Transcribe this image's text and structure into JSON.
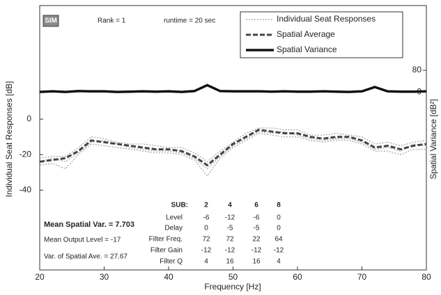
{
  "chart_data": {
    "type": "line",
    "x_label": "Frequency [Hz]",
    "y_label": "Individual Seat Responses  [dB]",
    "y2_label": "Spatial Variance  [dB²]",
    "logo": "SIM",
    "annotations": [
      "Rank = 1",
      "runtime = 20 sec"
    ],
    "stats": [
      "Mean Spatial Var. = 7.703",
      "Mean Output Level = -17",
      "Var. of Spatial Ave. = 27.67"
    ],
    "table": {
      "header": [
        "SUB:",
        2,
        4,
        6,
        8
      ],
      "rows": [
        [
          "Level",
          -6,
          -12,
          -6,
          0
        ],
        [
          "Delay",
          0,
          -5,
          -5,
          0
        ],
        [
          "Filter Freq.",
          72,
          72,
          22,
          64
        ],
        [
          "Filter Gain",
          -12,
          -12,
          -12,
          -12
        ],
        [
          "Filter  Q",
          4,
          16,
          16,
          4
        ]
      ]
    },
    "x": [
      20,
      22,
      24,
      26,
      28,
      30,
      32,
      34,
      36,
      38,
      40,
      42,
      44,
      46,
      48,
      50,
      52,
      54,
      56,
      58,
      60,
      62,
      64,
      66,
      68,
      70,
      72,
      74,
      76,
      78,
      80
    ],
    "series": [
      {
        "name": "Individual Seat Responses",
        "color": "#a0a0a0",
        "style": "dotted",
        "seats": [
          [
            -22,
            -21,
            -21,
            -16,
            -10,
            -11,
            -13,
            -14,
            -14,
            -15,
            -16,
            -16,
            -19,
            -24,
            -18,
            -13,
            -8,
            -5,
            -5,
            -6,
            -6,
            -9,
            -9,
            -8,
            -9,
            -10,
            -14,
            -13,
            -15,
            -13,
            -12
          ],
          [
            -26,
            -25,
            -28,
            -20,
            -14,
            -15,
            -16,
            -17,
            -18,
            -19,
            -19,
            -20,
            -23,
            -32,
            -22,
            -16,
            -12,
            -8,
            -9,
            -10,
            -10,
            -12,
            -13,
            -12,
            -12,
            -14,
            -18,
            -18,
            -20,
            -17,
            -17
          ],
          [
            -24,
            -22,
            -24,
            -19,
            -13,
            -12,
            -14,
            -16,
            -17,
            -18,
            -18,
            -19,
            -22,
            -28,
            -21,
            -15,
            -11,
            -7,
            -8,
            -7,
            -9,
            -11,
            -12,
            -11,
            -11,
            -13,
            -17,
            -16,
            -18,
            -14,
            -15
          ]
        ]
      },
      {
        "name": "Spatial Average",
        "color": "#444444",
        "style": "dashed",
        "values": [
          -24,
          -23,
          -22,
          -18,
          -12,
          -13,
          -14,
          -15,
          -16,
          -17,
          -17,
          -18,
          -21,
          -26,
          -20,
          -14,
          -10,
          -6,
          -7,
          -8,
          -8,
          -10,
          -11,
          -10,
          -10,
          -12,
          -16,
          -15,
          -17,
          -15,
          -14
        ]
      },
      {
        "name": "Spatial Variance",
        "color": "#111111",
        "style": "solid",
        "axis": "y2",
        "values": [
          0,
          2,
          0,
          3,
          2,
          2,
          0,
          1,
          2,
          1,
          2,
          0,
          3,
          25,
          3,
          2,
          2,
          2,
          1,
          2,
          1,
          1,
          2,
          1,
          0,
          2,
          18,
          2,
          1,
          1,
          2
        ]
      }
    ],
    "xlim": [
      20,
      80
    ],
    "xticks": [
      20,
      30,
      40,
      50,
      60,
      70,
      80
    ],
    "ylim": [
      -85,
      64
    ],
    "yticks": [
      -40,
      -20,
      0
    ],
    "y2lim": [
      -660,
      320
    ],
    "y2ticks": [
      0,
      80
    ],
    "legend": "upper right"
  }
}
